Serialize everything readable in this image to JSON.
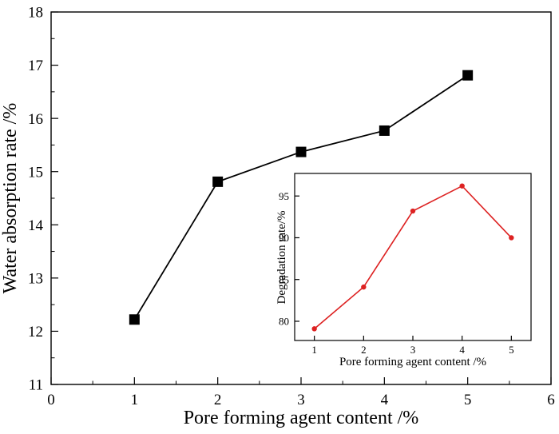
{
  "chart_data": [
    {
      "type": "line",
      "xlabel": "Pore forming agent content /%",
      "ylabel": "Water absorption rate /%",
      "xlim": [
        0,
        6
      ],
      "ylim": [
        11,
        18
      ],
      "x_ticks": [
        "0",
        "1",
        "2",
        "3",
        "4",
        "5",
        "6"
      ],
      "y_ticks": [
        "11",
        "12",
        "13",
        "14",
        "15",
        "16",
        "17",
        "18"
      ],
      "grid": false,
      "marker": "square",
      "series_color": "#000000",
      "series": [
        {
          "x": [
            1,
            2,
            3,
            4,
            5
          ],
          "values": [
            12.22,
            14.81,
            15.37,
            15.77,
            16.81
          ]
        }
      ]
    },
    {
      "type": "line",
      "xlabel": "Pore forming agent content /%",
      "ylabel": "Degradation rate/%",
      "xlim": [
        0.6,
        5.4
      ],
      "ylim": [
        77.7,
        97.7
      ],
      "x_ticks": [
        "1",
        "2",
        "3",
        "4",
        "5"
      ],
      "y_ticks": [
        "80",
        "85",
        "90",
        "95"
      ],
      "grid": false,
      "marker": "circle",
      "series_color": "#dd2222",
      "series": [
        {
          "x": [
            1,
            2,
            3,
            4,
            5
          ],
          "values": [
            79.1,
            84.1,
            93.2,
            96.2,
            90.0
          ]
        }
      ]
    }
  ]
}
